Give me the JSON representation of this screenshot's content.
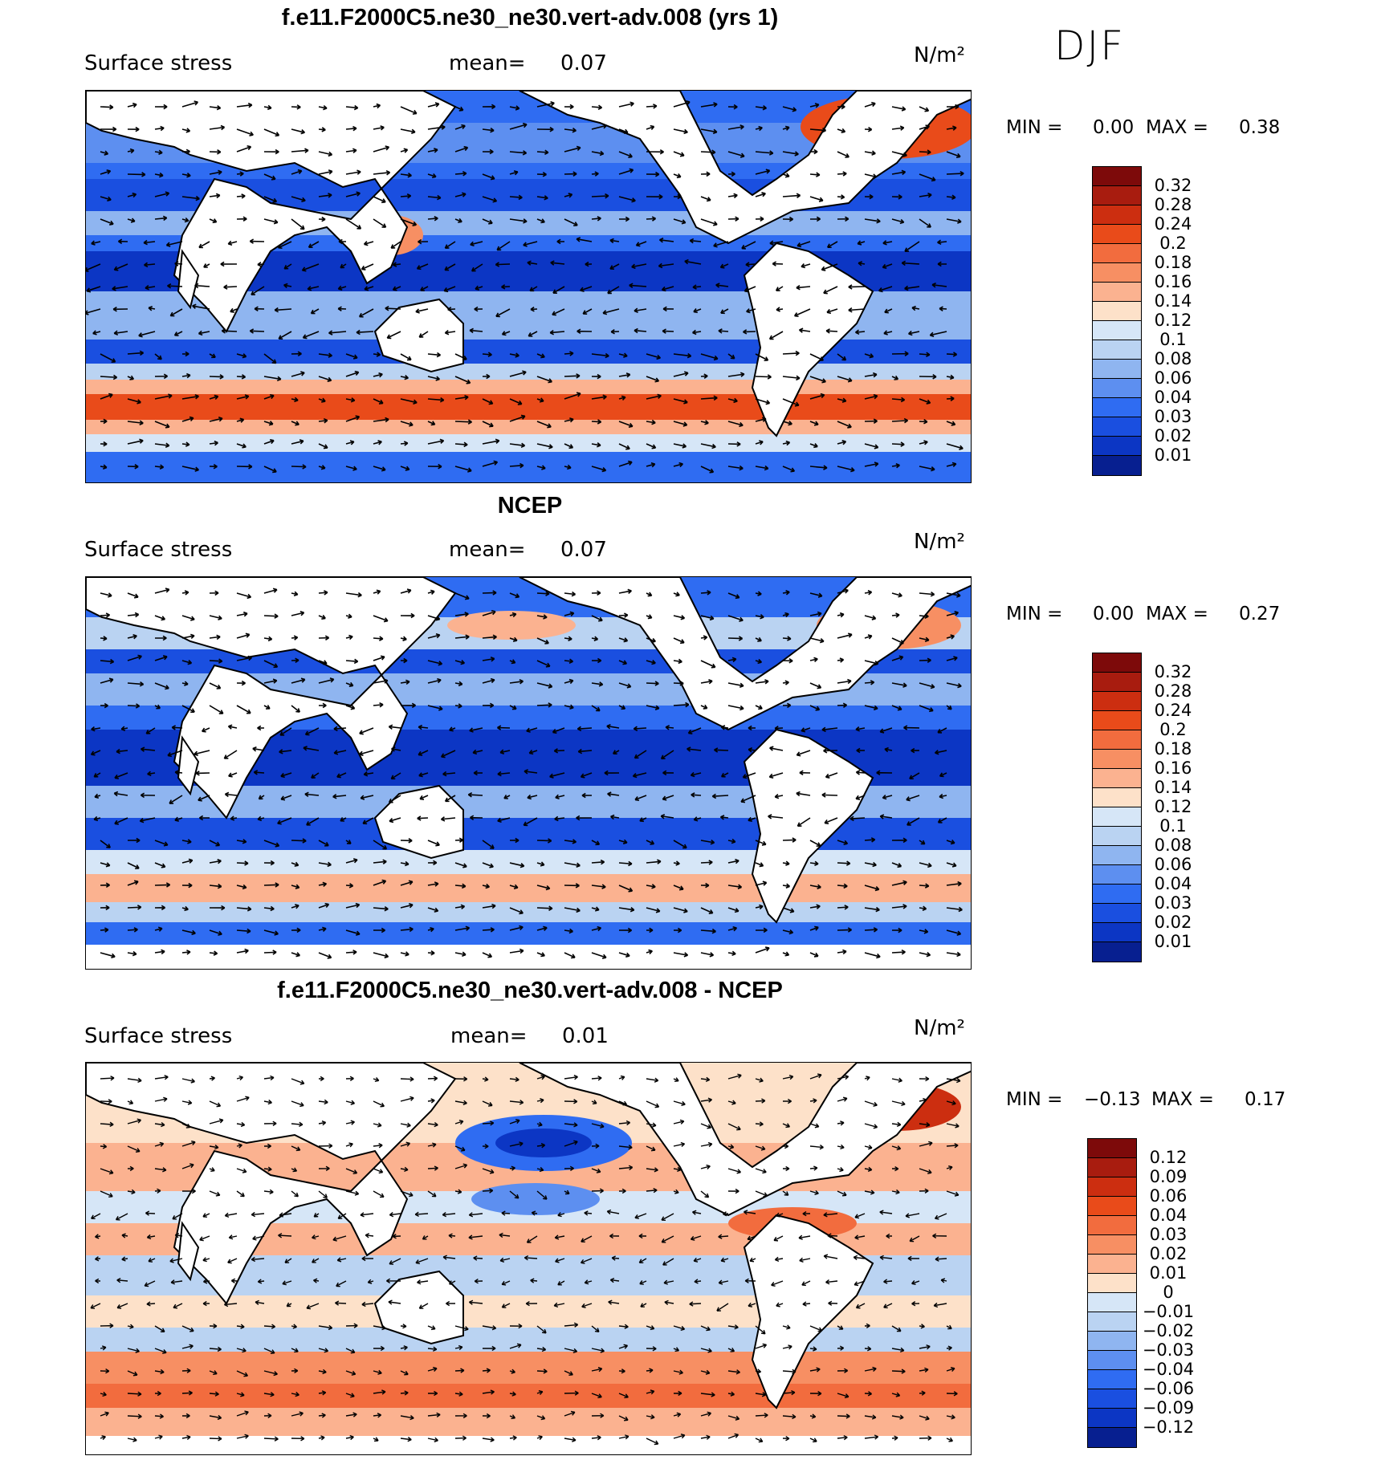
{
  "season": "DJF",
  "panels": [
    {
      "title": "f.e11.F2000C5.ne30_ne30.vert-adv.008 (yrs 1)",
      "variable": "Surface stress",
      "mean_label": "mean=",
      "mean_value": "0.07",
      "units": "N/m²",
      "min_label": "MIN =",
      "min_value": "0.00",
      "max_label": "MAX =",
      "max_value": "0.38",
      "colorbar_ticks": [
        "0.32",
        "0.28",
        "0.24",
        "0.2",
        "0.18",
        "0.16",
        "0.14",
        "0.12",
        "0.1",
        "0.08",
        "0.06",
        "0.04",
        "0.03",
        "0.02",
        "0.01"
      ],
      "colorbar_colors": [
        "#7d0a0a",
        "#a81c0f",
        "#cc2e10",
        "#e94b1a",
        "#f26c3e",
        "#f78f63",
        "#fbb290",
        "#fde1c9",
        "#d6e6f7",
        "#bad3f2",
        "#8fb5f0",
        "#5d8ff0",
        "#2f6cf2",
        "#1a4fe0",
        "#0c36c4",
        "#071f90"
      ]
    },
    {
      "title": "NCEP",
      "variable": "Surface stress",
      "mean_label": "mean=",
      "mean_value": "0.07",
      "units": "N/m²",
      "min_label": "MIN =",
      "min_value": "0.00",
      "max_label": "MAX =",
      "max_value": "0.27",
      "colorbar_ticks": [
        "0.32",
        "0.28",
        "0.24",
        "0.2",
        "0.18",
        "0.16",
        "0.14",
        "0.12",
        "0.1",
        "0.08",
        "0.06",
        "0.04",
        "0.03",
        "0.02",
        "0.01"
      ],
      "colorbar_colors": [
        "#7d0a0a",
        "#a81c0f",
        "#cc2e10",
        "#e94b1a",
        "#f26c3e",
        "#f78f63",
        "#fbb290",
        "#fde1c9",
        "#d6e6f7",
        "#bad3f2",
        "#8fb5f0",
        "#5d8ff0",
        "#2f6cf2",
        "#1a4fe0",
        "#0c36c4",
        "#071f90"
      ]
    },
    {
      "title": "f.e11.F2000C5.ne30_ne30.vert-adv.008 - NCEP",
      "variable": "Surface stress",
      "mean_label": "mean=",
      "mean_value": "0.01",
      "units": "N/m²",
      "min_label": "MIN =",
      "min_value": "−0.13",
      "max_label": "MAX =",
      "max_value": "0.17",
      "colorbar_ticks": [
        "0.12",
        "0.09",
        "0.06",
        "0.04",
        "0.03",
        "0.02",
        "0.01",
        "0",
        "−0.01",
        "−0.02",
        "−0.03",
        "−0.04",
        "−0.06",
        "−0.09",
        "−0.12"
      ],
      "colorbar_colors": [
        "#7d0a0a",
        "#a81c0f",
        "#cc2e10",
        "#e94b1a",
        "#f26c3e",
        "#f78f63",
        "#fbb290",
        "#fde1c9",
        "#d6e6f7",
        "#bad3f2",
        "#8fb5f0",
        "#5d8ff0",
        "#2f6cf2",
        "#1a4fe0",
        "#0c36c4",
        "#071f90"
      ]
    }
  ]
}
